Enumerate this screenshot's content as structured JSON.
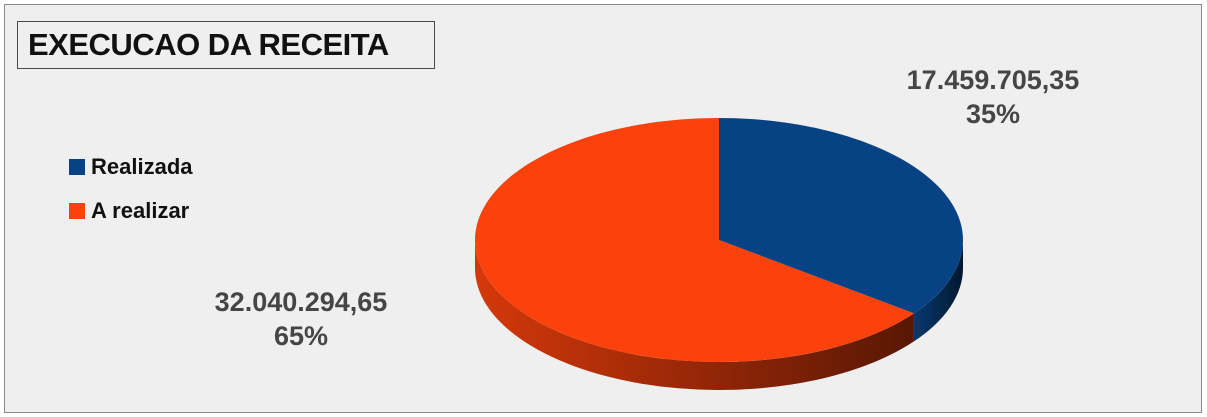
{
  "chart_data": {
    "type": "pie",
    "title": "EXECUCAO DA RECEITA",
    "legend_position": "left",
    "slices": [
      {
        "name": "Realizada",
        "value": 17459705.35,
        "value_label": "17.459.705,35",
        "percent_label": "35%",
        "color": "#074384"
      },
      {
        "name": "A realizar",
        "value": 32040294.65,
        "value_label": "32.040.294,65",
        "percent_label": "65%",
        "color": "#fb420c"
      }
    ]
  }
}
